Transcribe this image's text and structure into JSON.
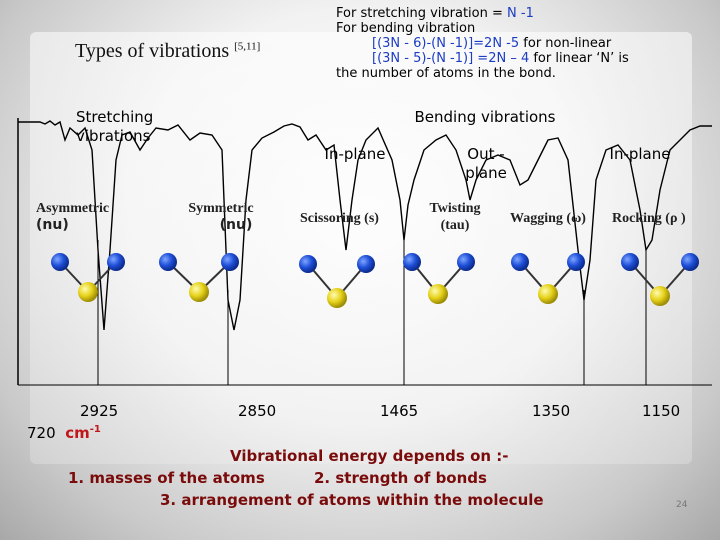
{
  "title": {
    "text": "Types of vibrations",
    "ref": "[5,11]"
  },
  "formula": {
    "line1_prefix": "For stretching vibration = ",
    "line1_value": "N -1",
    "line2": "For bending vibration",
    "line3_formula": "[(3N - 6)-(N -1)]=2N -5",
    "line3_suffix": " for non-linear",
    "line4_formula": "[(3N - 5)-(N -1)] =2N – 4",
    "line4_suffix": " for linear ‘N’ is",
    "line5": "the number of atoms in the bond."
  },
  "headers": {
    "stretching": "Stretching vibrations",
    "bending": "Bending vibrations",
    "in_plane_1": "In-plane",
    "out_of_plane": "Out - plane",
    "in_plane_2": "In-plane"
  },
  "modes": {
    "asymmetric": "Asymmetric",
    "asymmetric_sym": "(nu)",
    "symmetric": "Symmetric",
    "symmetric_sym": "(nu)",
    "scissoring": "Scissoring (s)",
    "twisting": "Twisting",
    "twisting_sym": "(tau)",
    "wagging": "Wagging (ω)",
    "rocking": "Rocking (ρ )"
  },
  "wavenumbers": {
    "w1": "2925",
    "w1b": "720",
    "unit": "cm",
    "unit_exp": "-1",
    "w2": "2850",
    "w3": "1465",
    "w4": "1350",
    "w5": "1150"
  },
  "bottom": {
    "line1": "Vibrational energy depends on :-",
    "line2a": "1. masses of the atoms",
    "line2b": "2. strength of bonds",
    "line3": "3. arrangement of atoms within the molecule"
  },
  "page_number": "24",
  "colors": {
    "hydrogen": "#1f4fd8",
    "carbon": "#e6d21a",
    "spectrum_line": "#000000",
    "emphasis": "#c0171b"
  }
}
